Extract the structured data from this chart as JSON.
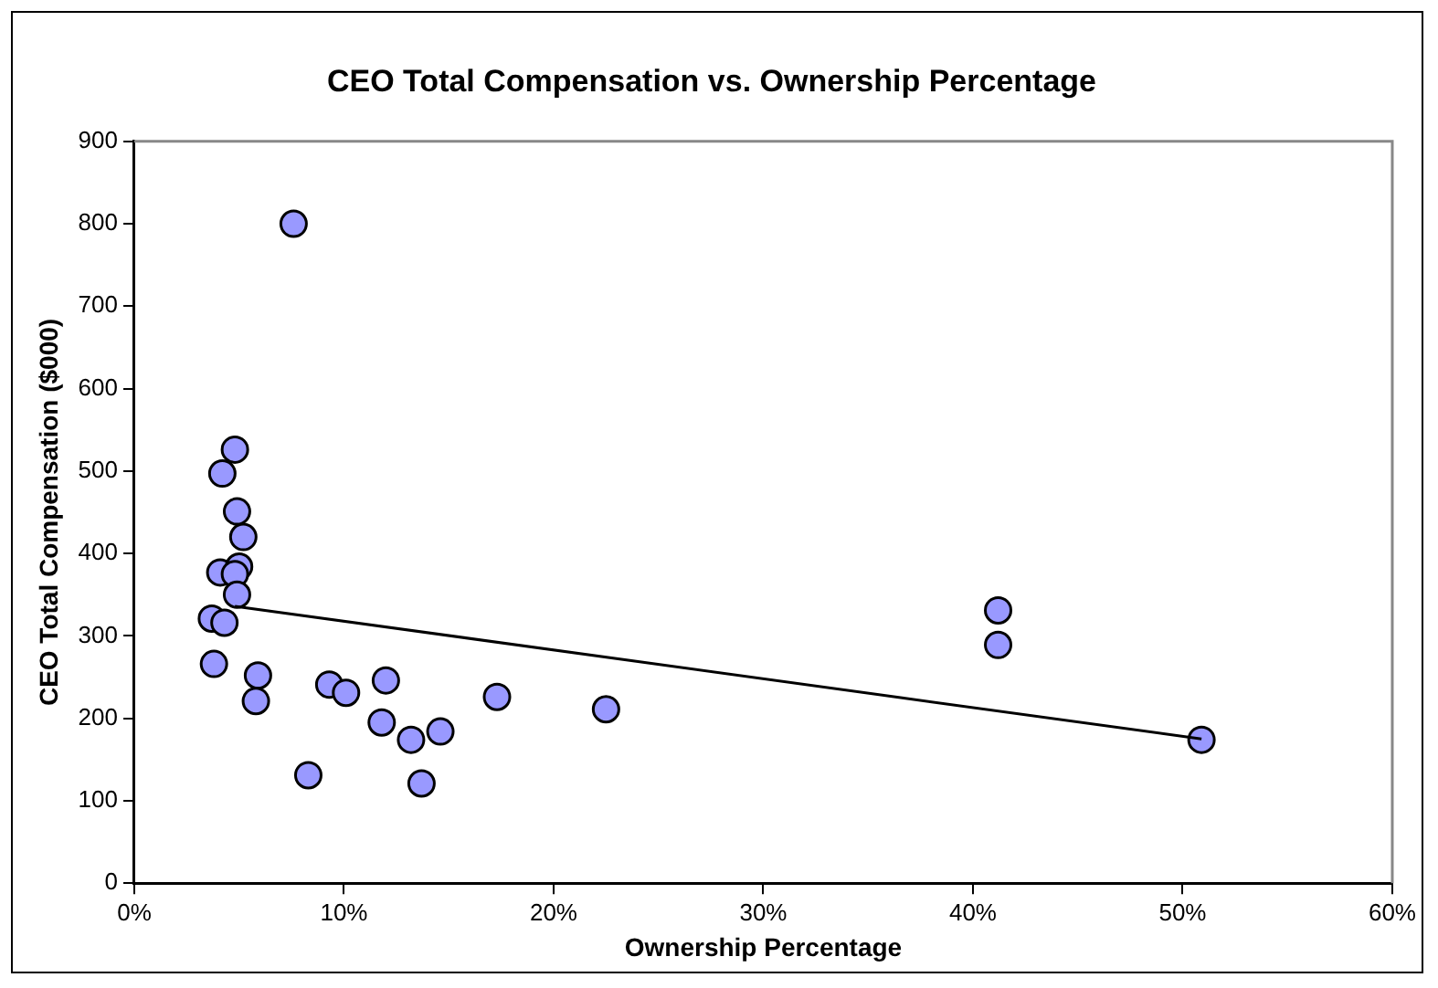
{
  "chart_data": {
    "type": "scatter",
    "title": "CEO Total Compensation vs. Ownership Percentage",
    "xlabel": "Ownership Percentage",
    "ylabel": "CEO Total Compensation ($000)",
    "xlim": [
      0,
      60
    ],
    "xticks": [
      {
        "value": 0,
        "label": "0%"
      },
      {
        "value": 10,
        "label": "10%"
      },
      {
        "value": 20,
        "label": "20%"
      },
      {
        "value": 30,
        "label": "30%"
      },
      {
        "value": 40,
        "label": "40%"
      },
      {
        "value": 50,
        "label": "50%"
      },
      {
        "value": 60,
        "label": "60%"
      }
    ],
    "ylim": [
      0,
      900
    ],
    "yticks": [
      0,
      100,
      200,
      300,
      400,
      500,
      600,
      700,
      800,
      900
    ],
    "grid": false,
    "legend": false,
    "series": [
      {
        "type": "scatter",
        "color": "#9999ff",
        "marker": "circle",
        "x": [
          4.8,
          4.2,
          4.9,
          5.2,
          4.1,
          5.0,
          4.8,
          4.9,
          3.7,
          4.3,
          3.8,
          5.9,
          5.8,
          9.3,
          10.1,
          12.0,
          11.8,
          13.2,
          14.6,
          13.7,
          8.3,
          17.3,
          22.5,
          7.6,
          41.2,
          41.2,
          50.9
        ],
        "values": [
          526,
          497,
          451,
          420,
          377,
          384,
          375,
          350,
          321,
          316,
          266,
          252,
          221,
          241,
          231,
          246,
          195,
          174,
          184,
          121,
          131,
          226,
          211,
          800,
          331,
          289,
          174
        ]
      },
      {
        "type": "line",
        "color": "#000000",
        "marker": "none",
        "line_style": "solid",
        "x": [
          4.8,
          50.9
        ],
        "values": [
          336,
          175
        ]
      }
    ]
  }
}
